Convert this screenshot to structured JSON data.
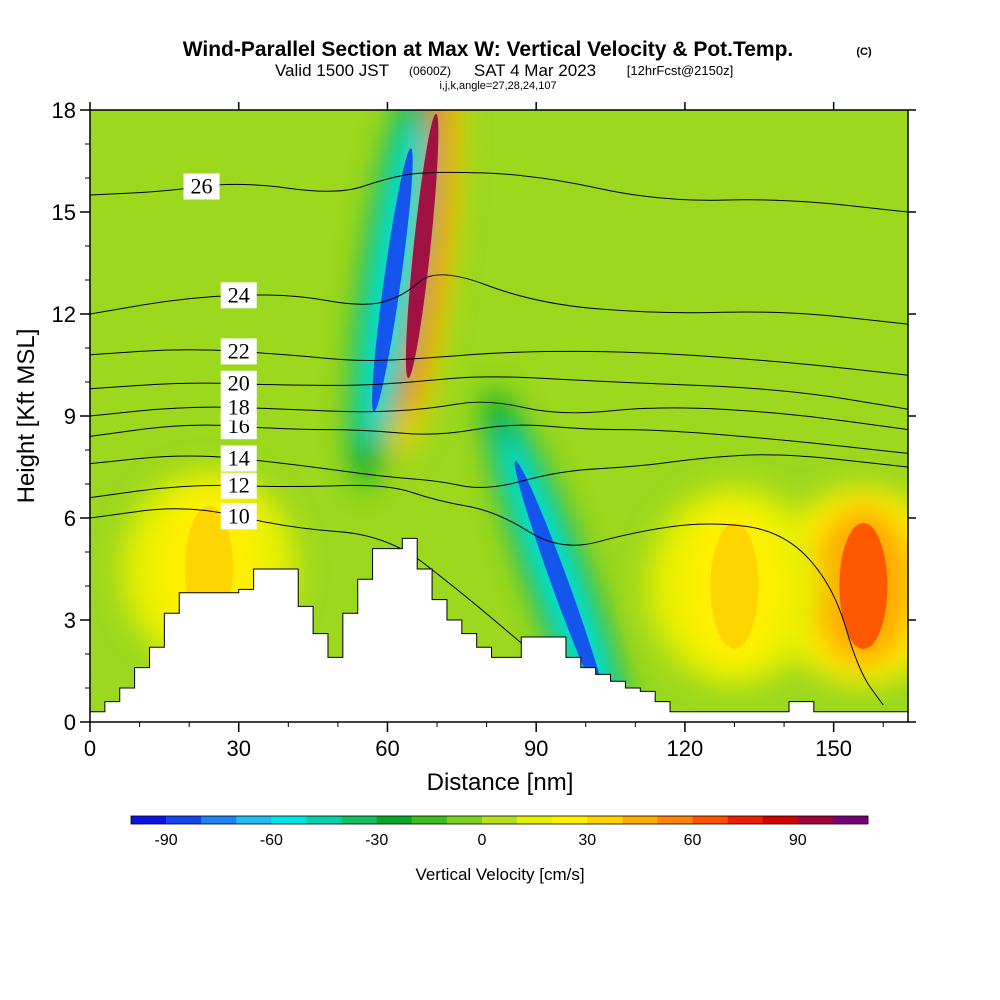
{
  "header": {
    "title_main": "Wind-Parallel Section at Max W: Vertical Velocity & Pot.Temp.",
    "title_mark": "(C)",
    "valid_a": "Valid 1500 JST",
    "valid_b": "(0600Z)",
    "valid_c": "SAT 4 Mar 2023",
    "valid_d": "[12hrFcst@2150z]",
    "indices": "i,j,k,angle=27,28,24,107"
  },
  "chart_data": {
    "type": "heatmap",
    "xlabel": "Distance [nm]",
    "ylabel": "Height [Kft MSL]",
    "xlim": [
      0,
      165
    ],
    "ylim": [
      0,
      18
    ],
    "x_ticks": [
      0,
      30,
      60,
      90,
      120,
      150
    ],
    "y_ticks": [
      0,
      3,
      6,
      9,
      12,
      15,
      18
    ],
    "colorbar": {
      "label": "Vertical Velocity [cm/s]",
      "tick_values": [
        -90,
        -60,
        -30,
        0,
        30,
        60,
        90
      ],
      "tick_labels": [
        "-90",
        "-60",
        "-30",
        "0",
        "30",
        "60",
        "90"
      ],
      "min": -100,
      "max": 110,
      "step": 10,
      "colors": [
        "#0a14e6",
        "#1446f0",
        "#1e82f5",
        "#1ebef5",
        "#00e6e6",
        "#00d2aa",
        "#14be64",
        "#00aa28",
        "#3cbe1e",
        "#78d21e",
        "#b4e11e",
        "#e6f000",
        "#fff000",
        "#ffd200",
        "#ffaa00",
        "#ff8200",
        "#ff5000",
        "#f01e00",
        "#d20000",
        "#a0003c",
        "#780078"
      ]
    },
    "terrain": [
      [
        0,
        0.3
      ],
      [
        3,
        0.6
      ],
      [
        6,
        1.0
      ],
      [
        9,
        1.6
      ],
      [
        12,
        2.2
      ],
      [
        15,
        3.2
      ],
      [
        18,
        3.8
      ],
      [
        24,
        3.8
      ],
      [
        30,
        3.9
      ],
      [
        33,
        4.5
      ],
      [
        42,
        3.4
      ],
      [
        45,
        2.6
      ],
      [
        48,
        1.9
      ],
      [
        51,
        3.2
      ],
      [
        54,
        4.2
      ],
      [
        57,
        5.1
      ],
      [
        63,
        5.4
      ],
      [
        66,
        4.5
      ],
      [
        69,
        3.6
      ],
      [
        72,
        3.0
      ],
      [
        75,
        2.6
      ],
      [
        78,
        2.2
      ],
      [
        81,
        1.9
      ],
      [
        87,
        2.5
      ],
      [
        93,
        2.5
      ],
      [
        96,
        1.9
      ],
      [
        99,
        1.6
      ],
      [
        102,
        1.4
      ],
      [
        105,
        1.2
      ],
      [
        108,
        1.0
      ],
      [
        111,
        0.9
      ],
      [
        114,
        0.6
      ],
      [
        117,
        0.3
      ],
      [
        120,
        0.3
      ],
      [
        138,
        0.3
      ],
      [
        141,
        0.6
      ],
      [
        146,
        0.6
      ],
      [
        146,
        0.3
      ],
      [
        165,
        0.3
      ]
    ],
    "velocity_features": [
      {
        "x": 67,
        "y": 14,
        "value": 95
      },
      {
        "x": 61,
        "y": 13,
        "value": -85
      },
      {
        "x": 95,
        "y": 4,
        "value": -85
      },
      {
        "x": 156,
        "y": 4,
        "value": 65
      },
      {
        "x": 130,
        "y": 4,
        "value": 35
      },
      {
        "x": 24,
        "y": 4.5,
        "value": 30
      }
    ],
    "theta_contours": [
      {
        "label": "10",
        "points": [
          [
            0,
            6.0
          ],
          [
            20,
            6.4
          ],
          [
            40,
            5.7
          ],
          [
            60,
            5.5
          ],
          [
            75,
            3.8
          ],
          [
            88,
            2.2
          ]
        ]
      },
      {
        "label": "12",
        "points": [
          [
            0,
            6.6
          ],
          [
            20,
            7.0
          ],
          [
            40,
            6.9
          ],
          [
            60,
            7.0
          ],
          [
            70,
            6.5
          ],
          [
            82,
            6.2
          ],
          [
            95,
            5.0
          ],
          [
            110,
            5.6
          ],
          [
            125,
            5.9
          ],
          [
            140,
            5.6
          ],
          [
            150,
            4.0
          ],
          [
            155,
            1.5
          ],
          [
            160,
            0.5
          ]
        ]
      },
      {
        "label": "14",
        "points": [
          [
            0,
            7.6
          ],
          [
            20,
            7.9
          ],
          [
            40,
            7.6
          ],
          [
            60,
            7.2
          ],
          [
            70,
            7.1
          ],
          [
            80,
            6.8
          ],
          [
            95,
            7.4
          ],
          [
            110,
            7.5
          ],
          [
            125,
            7.8
          ],
          [
            140,
            7.9
          ],
          [
            165,
            7.5
          ]
        ]
      },
      {
        "label": "16",
        "points": [
          [
            0,
            8.4
          ],
          [
            20,
            8.8
          ],
          [
            40,
            8.6
          ],
          [
            55,
            8.6
          ],
          [
            70,
            8.4
          ],
          [
            85,
            8.8
          ],
          [
            100,
            8.6
          ],
          [
            115,
            8.6
          ],
          [
            140,
            8.3
          ],
          [
            165,
            7.9
          ]
        ]
      },
      {
        "label": "18",
        "points": [
          [
            0,
            9.0
          ],
          [
            20,
            9.3
          ],
          [
            40,
            9.2
          ],
          [
            55,
            9.1
          ],
          [
            68,
            9.2
          ],
          [
            80,
            9.5
          ],
          [
            95,
            9.0
          ],
          [
            115,
            9.3
          ],
          [
            140,
            9.1
          ],
          [
            165,
            8.6
          ]
        ]
      },
      {
        "label": "20",
        "points": [
          [
            0,
            9.8
          ],
          [
            20,
            10.0
          ],
          [
            40,
            9.9
          ],
          [
            55,
            9.9
          ],
          [
            65,
            10.0
          ],
          [
            80,
            10.2
          ],
          [
            105,
            10.0
          ],
          [
            140,
            9.8
          ],
          [
            165,
            9.2
          ]
        ]
      },
      {
        "label": "22",
        "points": [
          [
            0,
            10.8
          ],
          [
            20,
            11.0
          ],
          [
            40,
            10.8
          ],
          [
            55,
            10.6
          ],
          [
            68,
            10.7
          ],
          [
            85,
            10.9
          ],
          [
            110,
            10.9
          ],
          [
            140,
            10.6
          ],
          [
            165,
            10.2
          ]
        ]
      },
      {
        "label": "24",
        "points": [
          [
            0,
            12.0
          ],
          [
            20,
            12.5
          ],
          [
            40,
            12.6
          ],
          [
            55,
            12.2
          ],
          [
            63,
            12.5
          ],
          [
            70,
            13.4
          ],
          [
            90,
            12.3
          ],
          [
            115,
            12.0
          ],
          [
            140,
            12.1
          ],
          [
            165,
            11.7
          ]
        ]
      },
      {
        "label": "26",
        "points": [
          [
            0,
            15.5
          ],
          [
            15,
            15.6
          ],
          [
            30,
            15.9
          ],
          [
            50,
            15.5
          ],
          [
            60,
            16.0
          ],
          [
            68,
            16.2
          ],
          [
            90,
            16.1
          ],
          [
            115,
            15.3
          ],
          [
            140,
            15.4
          ],
          [
            165,
            15.0
          ]
        ]
      }
    ]
  }
}
